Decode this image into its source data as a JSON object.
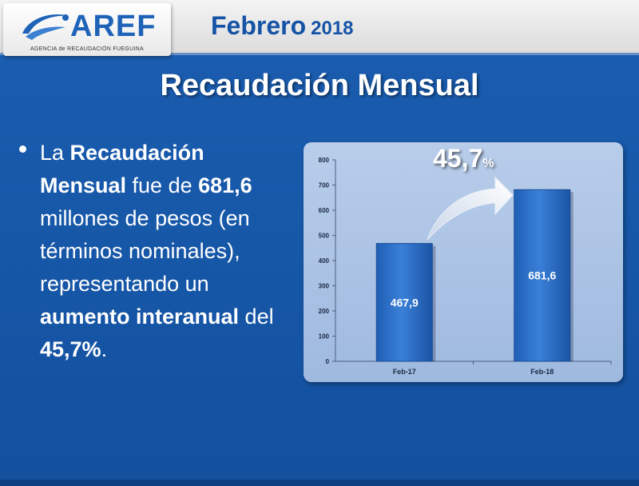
{
  "header": {
    "logo_text": "AREF",
    "logo_subtitle": "AGENCIA de RECAUDACIÓN FUEGUINA",
    "month": "Febrero",
    "year": "2018"
  },
  "slide": {
    "title": "Recaudación Mensual"
  },
  "bullet": {
    "p1": "La ",
    "b1": "Recaudación Mensual",
    "p2": " fue de ",
    "b2": "681,6",
    "p3": " millones de pesos (en términos nominales), representando un ",
    "b3": "aumento interanual",
    "p4": " del ",
    "b4": "45,7%",
    "p5": "."
  },
  "growth": {
    "number": "45,7",
    "percent_sign": "%"
  },
  "colors": {
    "background": "#1a5aa8",
    "bar": "#2a6cc4",
    "header_text": "#1553a6"
  },
  "chart_data": {
    "type": "bar",
    "categories": [
      "Feb-17",
      "Feb-18"
    ],
    "values": [
      467.9,
      681.6
    ],
    "data_labels": [
      "467,9",
      "681,6"
    ],
    "ylim": [
      0,
      800
    ],
    "yticks": [
      0,
      100,
      200,
      300,
      400,
      500,
      600,
      700,
      800
    ],
    "grid": false,
    "legend": "none",
    "annotation": "45,7%"
  }
}
